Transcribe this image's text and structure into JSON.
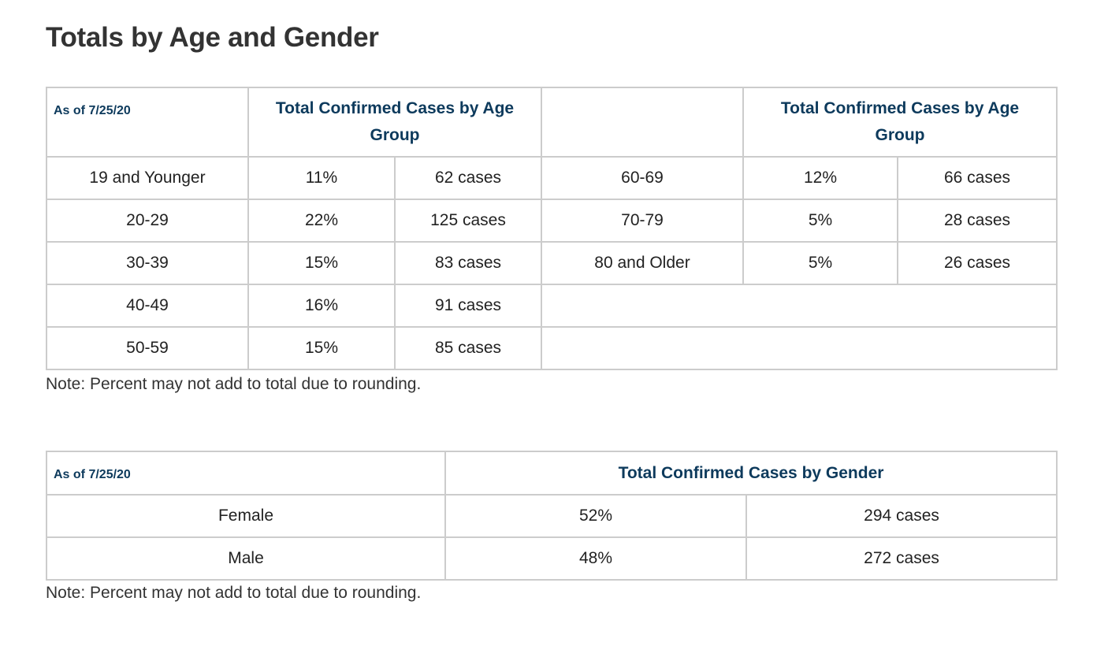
{
  "title": "Totals by Age and Gender",
  "age_table": {
    "as_of": "As of 7/25/20",
    "left_header": "Total Confirmed Cases by Age Group",
    "right_header": "Total Confirmed Cases by Age Group",
    "left_rows": [
      {
        "group": "19 and Younger",
        "percent": "11%",
        "cases": "62 cases"
      },
      {
        "group": "20-29",
        "percent": "22%",
        "cases": "125 cases"
      },
      {
        "group": "30-39",
        "percent": "15%",
        "cases": "83 cases"
      },
      {
        "group": "40-49",
        "percent": "16%",
        "cases": "91 cases"
      },
      {
        "group": "50-59",
        "percent": "15%",
        "cases": "85 cases"
      }
    ],
    "right_rows": [
      {
        "group": "60-69",
        "percent": "12%",
        "cases": "66 cases"
      },
      {
        "group": "70-79",
        "percent": "5%",
        "cases": "28 cases"
      },
      {
        "group": "80 and Older",
        "percent": "5%",
        "cases": "26 cases"
      }
    ],
    "note": "Note: Percent may not add to total due to rounding."
  },
  "gender_table": {
    "as_of": "As of 7/25/20",
    "header": "Total Confirmed Cases by Gender",
    "rows": [
      {
        "gender": "Female",
        "percent": "52%",
        "cases": "294 cases"
      },
      {
        "gender": "Male",
        "percent": "48%",
        "cases": "272 cases"
      }
    ],
    "note": "Note: Percent may not add to total due to rounding."
  },
  "colors": {
    "header_text": "#0d3a5c",
    "border": "#cccccc",
    "body_text": "#333333"
  }
}
